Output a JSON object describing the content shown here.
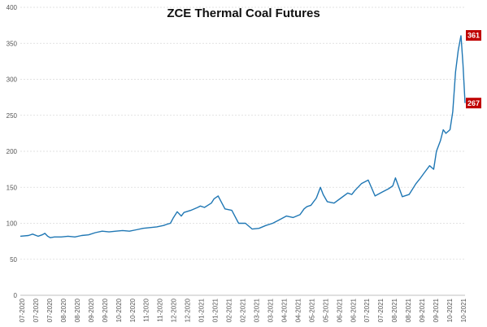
{
  "chart_data": {
    "type": "line",
    "title": "ZCE Thermal Coal Futures",
    "xlabel": "",
    "ylabel": "",
    "ylim": [
      0,
      400
    ],
    "yticks": [
      0,
      50,
      100,
      150,
      200,
      250,
      300,
      350,
      400
    ],
    "grid": "horizontal dashed",
    "legend": "none",
    "line_color": "#1f77b4",
    "callout_color": "#c00000",
    "x_tick_labels": [
      "07-2020",
      "07-2020",
      "07-2020",
      "08-2020",
      "08-2020",
      "09-2020",
      "09-2020",
      "10-2020",
      "10-2020",
      "11-2020",
      "11-2020",
      "12-2020",
      "12-2020",
      "01-2021",
      "01-2021",
      "02-2021",
      "02-2021",
      "03-2021",
      "03-2021",
      "04-2021",
      "04-2021",
      "05-2021",
      "05-2021",
      "06-2021",
      "06-2021",
      "07-2021",
      "07-2021",
      "08-2021",
      "08-2021",
      "09-2021",
      "09-2021",
      "10-2021",
      "10-2021"
    ],
    "x_range": [
      0,
      32.6
    ],
    "series": [
      {
        "x": [
          0,
          0.6,
          0.9,
          1.3,
          1.6,
          1.8,
          2.0,
          2.2,
          2.5,
          3.0,
          3.5,
          4.0,
          4.5,
          5.0,
          5.5,
          6.0,
          6.5,
          7.0,
          7.5,
          8.0,
          8.5,
          9.0,
          9.5,
          10.0,
          10.5,
          10.8,
          11.0,
          11.2,
          11.5,
          11.8,
          12.0,
          12.5,
          13.0,
          13.2,
          13.5,
          14.0,
          14.2,
          14.5,
          15.0,
          15.5,
          16.0,
          16.5,
          17.0,
          17.5,
          18.0,
          18.5,
          19.0,
          19.5,
          20.0,
          20.5,
          20.8,
          21.0,
          21.3,
          21.7,
          22.0,
          22.2,
          22.5,
          23.0,
          23.5,
          24.0,
          24.3,
          24.5,
          25.0,
          25.5,
          26.0,
          26.5,
          27.0,
          27.3,
          27.5,
          28.0,
          28.5,
          29.0,
          29.3,
          29.6,
          30.0,
          30.3,
          30.5,
          30.8,
          31.0,
          31.2,
          31.5,
          31.7,
          31.9,
          32.1,
          32.3
        ],
        "y": [
          82,
          83,
          85,
          82,
          84,
          86,
          82,
          80,
          81,
          81,
          82,
          81,
          83,
          84,
          87,
          89,
          88,
          89,
          90,
          89,
          91,
          93,
          94,
          95,
          97,
          99,
          100,
          107,
          116,
          110,
          115,
          118,
          122,
          124,
          122,
          128,
          134,
          138,
          120,
          118,
          100,
          100,
          92,
          93,
          97,
          100,
          105,
          110,
          108,
          112,
          120,
          123,
          125,
          135,
          150,
          140,
          130,
          128,
          135,
          142,
          140,
          145,
          155,
          160,
          138,
          143,
          148,
          152,
          163,
          137,
          140,
          155,
          162,
          170,
          180,
          175,
          200,
          215,
          230,
          225,
          230,
          255,
          310,
          340,
          361
        ]
      },
      {
        "x": [
          32.3,
          32.45,
          32.6
        ],
        "y": [
          361,
          320,
          267
        ]
      }
    ],
    "annotations": [
      {
        "label": "361",
        "value": 361
      },
      {
        "label": "267",
        "value": 267
      }
    ]
  }
}
